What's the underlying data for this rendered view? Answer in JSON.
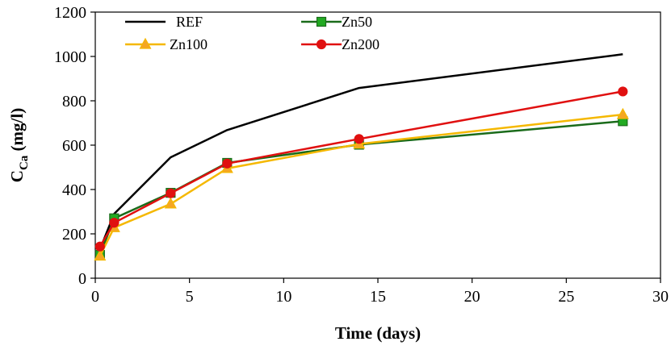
{
  "chart_data": {
    "type": "line",
    "title": "",
    "xlabel": "Time (days)",
    "ylabel_main": "C",
    "ylabel_sub": "Ca",
    "ylabel_unit": " (mg/l)",
    "xlim": [
      0,
      30
    ],
    "ylim": [
      0,
      1200
    ],
    "xticks": [
      0,
      5,
      10,
      15,
      20,
      25,
      30
    ],
    "yticks": [
      0,
      200,
      400,
      600,
      800,
      1000,
      1200
    ],
    "grid": false,
    "legend_position": "top",
    "series": [
      {
        "name": "REF",
        "color": "#000000",
        "marker": "none",
        "x": [
          0.25,
          1,
          4,
          7,
          14,
          28
        ],
        "y": [
          130,
          290,
          545,
          668,
          858,
          1010
        ]
      },
      {
        "name": "Zn50",
        "color": "#1a6b1a",
        "marker_fill": "#22aa22",
        "marker": "square",
        "x": [
          0.25,
          1,
          4,
          7,
          14,
          28
        ],
        "y": [
          105,
          270,
          385,
          520,
          602,
          708
        ]
      },
      {
        "name": "Zn100",
        "color": "#f5b800",
        "marker_fill": "#f5a623",
        "marker": "triangle",
        "x": [
          0.25,
          1,
          4,
          7,
          14,
          28
        ],
        "y": [
          100,
          228,
          335,
          495,
          605,
          738
        ]
      },
      {
        "name": "Zn200",
        "color": "#e01010",
        "marker_fill": "#e01010",
        "marker": "circle",
        "x": [
          0.25,
          1,
          4,
          7,
          14,
          28
        ],
        "y": [
          143,
          250,
          383,
          517,
          628,
          842
        ]
      }
    ]
  }
}
